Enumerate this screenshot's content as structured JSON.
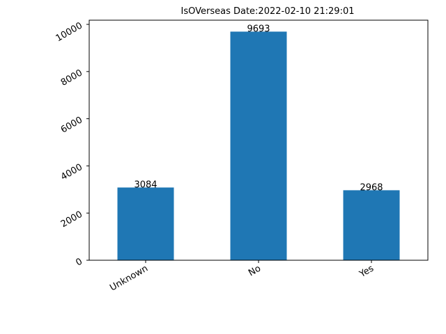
{
  "chart_data": {
    "type": "bar",
    "title": "IsOVerseas  Date:2022-02-10 21:29:01",
    "xlabel": "",
    "ylabel": "",
    "categories": [
      "Unknown",
      "No",
      "Yes"
    ],
    "values": [
      3084,
      9693,
      2968
    ],
    "data_labels": [
      "3084",
      "9693",
      "2968"
    ],
    "ylim": [
      0,
      10178
    ],
    "yticks": [
      0,
      2000,
      4000,
      6000,
      8000,
      10000
    ],
    "ytick_labels": [
      "0",
      "2000",
      "4000",
      "6000",
      "8000",
      "10000"
    ],
    "grid": false,
    "legend": "none",
    "bar_color": "#1f77b4"
  }
}
